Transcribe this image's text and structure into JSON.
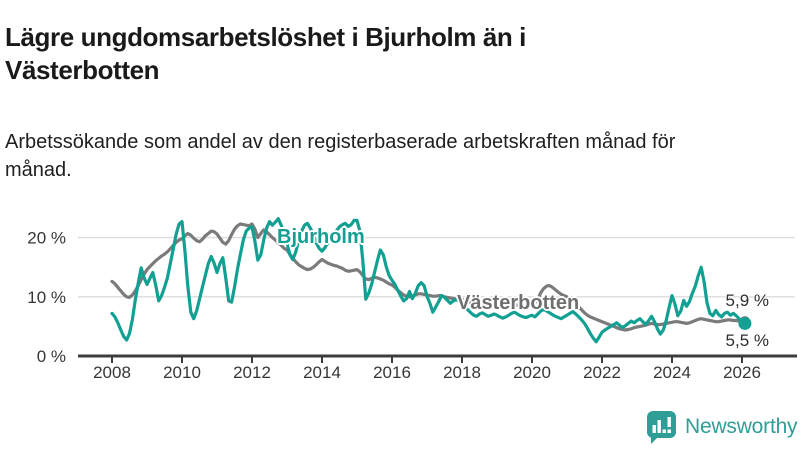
{
  "header": {
    "title": "Lägre ungdomsarbetslöshet i Bjurholm än i Västerbotten",
    "subtitle": "Arbetssökande som andel av den registerbaserade arbetskraften månad för månad."
  },
  "colors": {
    "bjurholm": "#12a093",
    "vasterbotten": "#7b7b7b",
    "grid": "#dcdcdc",
    "axis": "#3c3c3c",
    "tick_text": "#363636",
    "brand_teal": "#2f9e96"
  },
  "chart_data": {
    "type": "line",
    "x_unit": "monthly",
    "x_start": "2008-01",
    "x_end": "2026-02",
    "x_tick_labels": [
      "2008",
      "2010",
      "2012",
      "2014",
      "2016",
      "2018",
      "2020",
      "2022",
      "2024",
      "2026"
    ],
    "y_ticks": [
      0,
      10,
      20
    ],
    "y_tick_labels": [
      "0 %",
      "10 %",
      "20 %"
    ],
    "ylim": [
      0,
      24
    ],
    "grid": "horizontal",
    "legend_position": "inline-labels",
    "series": [
      {
        "name": "Västerbotten",
        "color": "#7b7b7b",
        "end_label": "5,9 %",
        "end_value": 5.9,
        "values": [
          12.6,
          12.2,
          11.6,
          11.0,
          10.4,
          10.0,
          9.9,
          10.3,
          11.0,
          11.9,
          12.9,
          13.8,
          14.6,
          15.1,
          15.6,
          16.1,
          16.5,
          16.9,
          17.2,
          17.6,
          18.1,
          18.7,
          19.2,
          19.6,
          19.8,
          20.3,
          20.7,
          20.4,
          19.9,
          19.5,
          19.3,
          19.7,
          20.3,
          20.7,
          21.1,
          21.0,
          20.6,
          19.9,
          19.2,
          18.9,
          19.5,
          20.5,
          21.4,
          22.0,
          22.3,
          22.2,
          22.1,
          22.0,
          22.3,
          21.4,
          20.0,
          20.7,
          21.3,
          21.0,
          20.5,
          20.0,
          19.6,
          19.1,
          18.7,
          18.2,
          17.9,
          17.2,
          16.5,
          15.9,
          15.4,
          15.1,
          14.8,
          14.6,
          14.7,
          15.0,
          15.4,
          15.9,
          16.3,
          16.0,
          15.7,
          15.5,
          15.3,
          15.2,
          15.0,
          14.8,
          14.5,
          14.3,
          14.4,
          14.5,
          14.6,
          14.2,
          13.6,
          13.0,
          12.9,
          13.1,
          13.3,
          13.2,
          13.0,
          12.8,
          12.5,
          12.2,
          12.0,
          11.6,
          11.1,
          10.7,
          10.3,
          10.1,
          10.0,
          10.1,
          10.3,
          10.5,
          10.5,
          10.4,
          10.3,
          10.2,
          10.1,
          10.1,
          10.2,
          10.2,
          10.0,
          9.9,
          9.8,
          9.7,
          9.6,
          9.6,
          9.6,
          9.4,
          9.2,
          9.0,
          8.8,
          8.7,
          8.6,
          8.6,
          8.5,
          8.5,
          8.6,
          8.7,
          8.7,
          8.6,
          8.5,
          8.4,
          8.4,
          8.5,
          8.6,
          8.6,
          8.5,
          8.4,
          8.4,
          8.5,
          8.7,
          9.0,
          9.6,
          10.7,
          11.4,
          11.8,
          11.9,
          11.6,
          11.2,
          10.8,
          10.4,
          10.2,
          10.0,
          9.7,
          9.3,
          8.8,
          8.3,
          7.8,
          7.3,
          6.9,
          6.6,
          6.4,
          6.2,
          6.0,
          5.8,
          5.6,
          5.4,
          5.2,
          5.0,
          4.8,
          4.6,
          4.5,
          4.4,
          4.5,
          4.6,
          4.8,
          4.9,
          5.0,
          5.1,
          5.2,
          5.4,
          5.5,
          5.4,
          5.3,
          5.3,
          5.4,
          5.5,
          5.6,
          5.7,
          5.8,
          5.8,
          5.7,
          5.6,
          5.5,
          5.6,
          5.8,
          6.0,
          6.2,
          6.3,
          6.2,
          6.1,
          6.0,
          5.9,
          5.8,
          5.8,
          5.9,
          6.0,
          6.1,
          6.1,
          6.0,
          6.0,
          5.9,
          5.9,
          5.9
        ]
      },
      {
        "name": "Bjurholm",
        "color": "#12a093",
        "end_label": "5,5 %",
        "end_value": 5.5,
        "values": [
          7.2,
          6.6,
          5.6,
          4.4,
          3.3,
          2.7,
          3.8,
          6.2,
          9.5,
          12.4,
          14.9,
          13.2,
          12.1,
          13.1,
          14.1,
          11.9,
          9.3,
          10.2,
          11.6,
          13.2,
          15.6,
          18.1,
          20.6,
          22.3,
          22.7,
          17.8,
          11.8,
          7.4,
          6.3,
          7.6,
          9.6,
          11.6,
          13.6,
          15.6,
          16.8,
          15.7,
          14.1,
          15.6,
          16.6,
          13.1,
          9.3,
          9.1,
          11.6,
          14.6,
          17.1,
          19.6,
          21.1,
          21.6,
          21.8,
          19.4,
          16.2,
          17.1,
          19.6,
          21.6,
          22.7,
          22.1,
          22.6,
          23.2,
          22.1,
          20.6,
          19.1,
          17.1,
          16.3,
          17.6,
          19.6,
          21.1,
          22.1,
          22.4,
          21.6,
          20.6,
          19.1,
          18.2,
          17.7,
          18.3,
          19.1,
          19.9,
          20.6,
          21.2,
          21.8,
          22.2,
          22.4,
          21.9,
          22.2,
          22.9,
          22.9,
          21.1,
          16.1,
          9.6,
          10.6,
          12.1,
          14.1,
          16.1,
          17.9,
          17.1,
          15.1,
          13.6,
          12.8,
          12.1,
          11.1,
          10.1,
          9.3,
          9.7,
          10.9,
          9.7,
          10.6,
          11.9,
          12.4,
          11.9,
          10.1,
          8.9,
          7.4,
          8.3,
          9.2,
          10.2,
          9.9,
          9.4,
          8.9,
          9.3,
          9.6,
          9.2,
          8.8,
          8.3,
          7.8,
          7.3,
          6.9,
          6.7,
          7.1,
          7.3,
          7.0,
          6.7,
          6.9,
          7.1,
          6.9,
          6.6,
          6.4,
          6.6,
          6.9,
          7.2,
          7.4,
          7.1,
          6.8,
          6.6,
          6.5,
          6.7,
          6.9,
          6.6,
          7.1,
          7.6,
          7.9,
          7.6,
          7.3,
          7.0,
          6.7,
          6.5,
          6.3,
          6.6,
          6.9,
          7.2,
          7.5,
          7.1,
          6.6,
          6.1,
          5.5,
          4.7,
          3.8,
          3.0,
          2.4,
          3.2,
          4.0,
          4.4,
          4.7,
          5.0,
          5.3,
          5.6,
          5.2,
          4.8,
          5.1,
          5.5,
          5.9,
          5.6,
          6.0,
          6.3,
          5.8,
          5.3,
          6.0,
          6.7,
          5.8,
          4.6,
          3.7,
          4.4,
          6.0,
          8.2,
          10.2,
          8.8,
          6.8,
          7.6,
          9.4,
          8.4,
          9.2,
          10.6,
          11.8,
          13.6,
          15.0,
          12.5,
          9.0,
          7.2,
          6.8,
          7.7,
          7.0,
          6.6,
          7.2,
          7.4,
          6.9,
          7.2,
          6.8,
          6.3,
          5.9,
          5.5
        ]
      }
    ]
  },
  "footer": {
    "brand": "Newsworthy",
    "logo_icon": "bar-chart-speech-bubble-icon"
  }
}
